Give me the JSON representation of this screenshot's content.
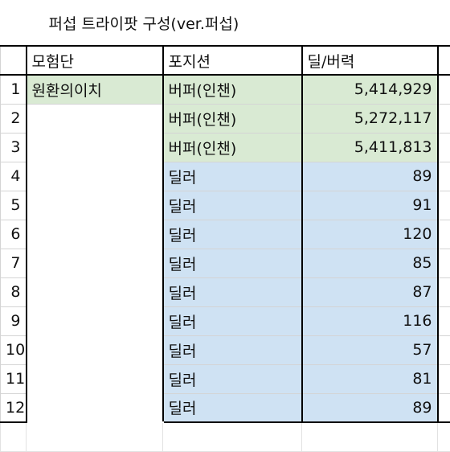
{
  "title": "퍼섭 트라이팟 구성(ver.퍼섭)",
  "headers": {
    "party": "모험단",
    "position": "포지션",
    "damage": "딜/버력"
  },
  "party_name": "원환의이치",
  "rows": [
    {
      "n": "1",
      "position": "버퍼(인챈)",
      "damage": "5,414,929",
      "kind": "buffer"
    },
    {
      "n": "2",
      "position": "버퍼(인챈)",
      "damage": "5,272,117",
      "kind": "buffer"
    },
    {
      "n": "3",
      "position": "버퍼(인챈)",
      "damage": "5,411,813",
      "kind": "buffer"
    },
    {
      "n": "4",
      "position": "딜러",
      "damage": "89",
      "kind": "dealer"
    },
    {
      "n": "5",
      "position": "딜러",
      "damage": "91",
      "kind": "dealer"
    },
    {
      "n": "6",
      "position": "딜러",
      "damage": "120",
      "kind": "dealer"
    },
    {
      "n": "7",
      "position": "딜러",
      "damage": "85",
      "kind": "dealer"
    },
    {
      "n": "8",
      "position": "딜러",
      "damage": "87",
      "kind": "dealer"
    },
    {
      "n": "9",
      "position": "딜러",
      "damage": "116",
      "kind": "dealer"
    },
    {
      "n": "10",
      "position": "딜러",
      "damage": "57",
      "kind": "dealer"
    },
    {
      "n": "11",
      "position": "딜러",
      "damage": "81",
      "kind": "dealer"
    },
    {
      "n": "12",
      "position": "딜러",
      "damage": "89",
      "kind": "dealer"
    }
  ],
  "colors": {
    "buffer": "#d9ead3",
    "dealer": "#cfe2f3"
  }
}
